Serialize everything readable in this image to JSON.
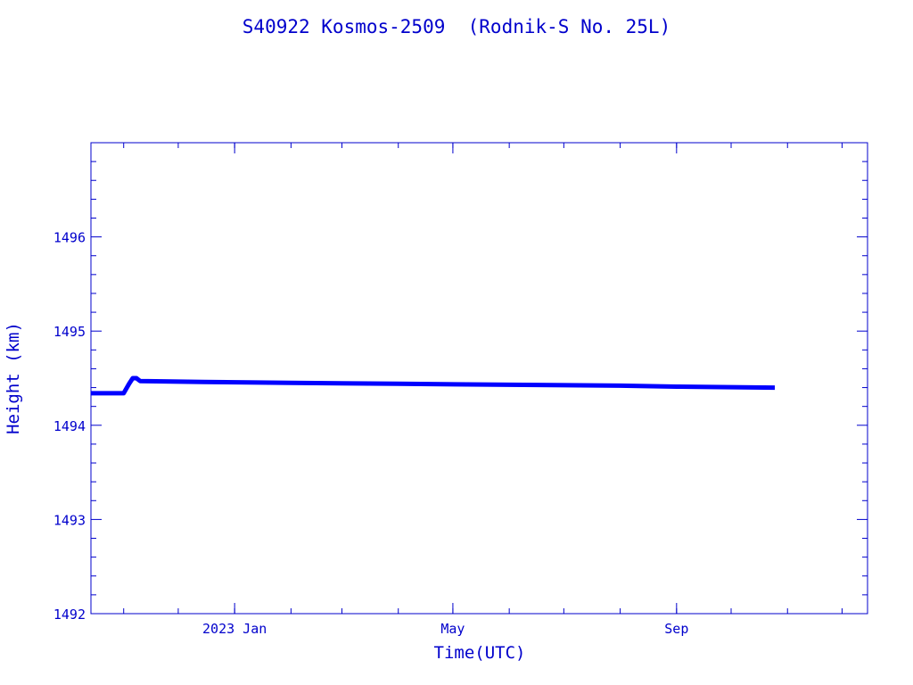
{
  "chart_data": {
    "type": "line",
    "title": "S40922 Kosmos-2509  (Rodnik-S No. 25L)",
    "xlabel": "Time(UTC)",
    "ylabel": "Height (km)",
    "ylim": [
      1492,
      1497
    ],
    "xlim": [
      "2022-10-14",
      "2023-12-15"
    ],
    "x_ticks": [
      {
        "date": "2023-01-01",
        "label": "2023 Jan"
      },
      {
        "date": "2023-05-01",
        "label": "May"
      },
      {
        "date": "2023-09-01",
        "label": "Sep"
      }
    ],
    "y_ticks": [
      1492,
      1493,
      1494,
      1495,
      1496
    ],
    "grid": false,
    "colors": {
      "frame": "#0000cc",
      "series": "#0000ff"
    },
    "series": [
      {
        "x": [
          "2022-10-14",
          "2022-11-01",
          "2022-11-04",
          "2022-11-06",
          "2022-11-08",
          "2022-11-10",
          "2022-12-15",
          "2023-02-01",
          "2023-04-01",
          "2023-06-01",
          "2023-08-01",
          "2023-09-01",
          "2023-10-25"
        ],
        "y": [
          1494.34,
          1494.34,
          1494.44,
          1494.5,
          1494.5,
          1494.47,
          1494.46,
          1494.45,
          1494.44,
          1494.43,
          1494.42,
          1494.41,
          1494.4
        ]
      }
    ]
  }
}
